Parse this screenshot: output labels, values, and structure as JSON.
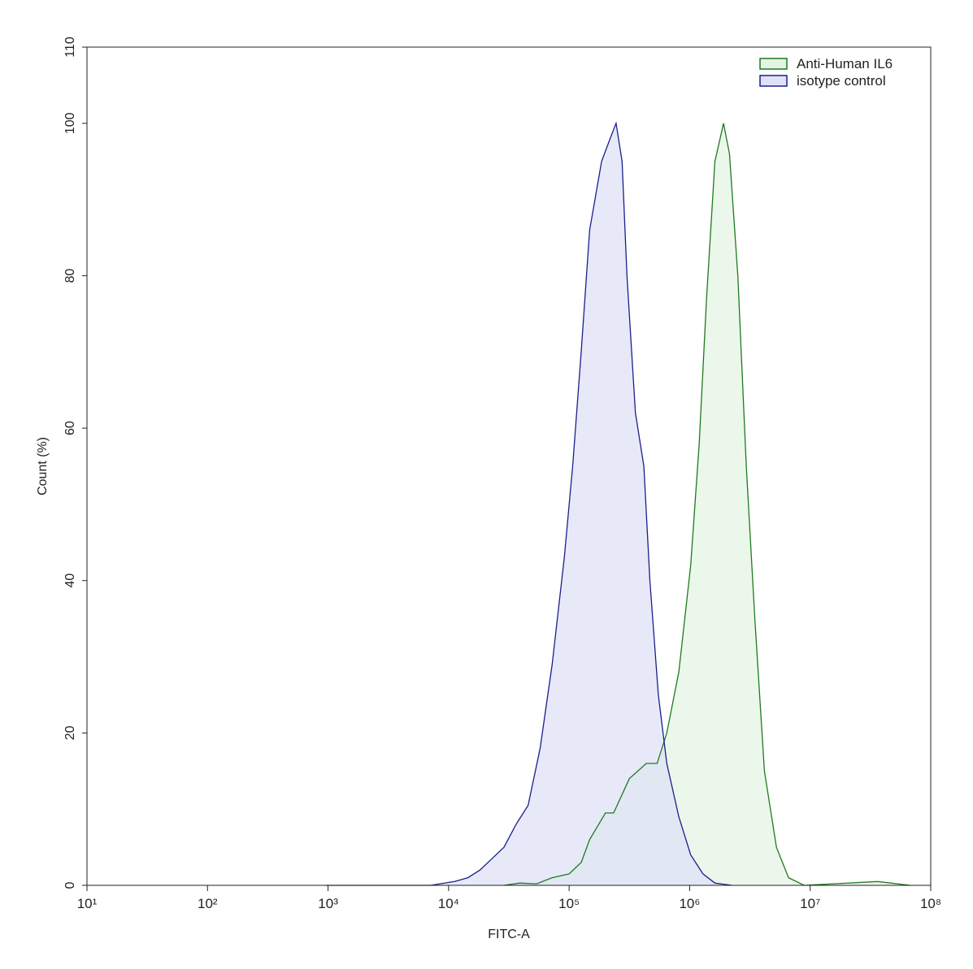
{
  "chart_data": {
    "type": "area",
    "x_label": "FITC-A",
    "y_label": "Count  (%)",
    "xscale": "log",
    "xlim": [
      10,
      100000000
    ],
    "xticks": [
      {
        "value": 10,
        "label": "10¹"
      },
      {
        "value": 100,
        "label": "10²"
      },
      {
        "value": 1000,
        "label": "10³"
      },
      {
        "value": 10000,
        "label": "10⁴"
      },
      {
        "value": 100000,
        "label": "10⁵"
      },
      {
        "value": 1000000,
        "label": "10⁶"
      },
      {
        "value": 10000000,
        "label": "10⁷"
      },
      {
        "value": 100000000,
        "label": "10⁸"
      }
    ],
    "ylim": [
      0,
      110
    ],
    "yticks": [
      0,
      20,
      40,
      60,
      80,
      100,
      110
    ],
    "legend": "upper right",
    "series": [
      {
        "name": "Anti-Human IL6",
        "color": "#1f7a1f",
        "fill": "#e4f4e4",
        "x": [
          28800,
          38900,
          53700,
          72400,
          100000,
          126000,
          148000,
          200000,
          234000,
          316000,
          437000,
          537000,
          646000,
          813000,
          1020000,
          1200000,
          1380000,
          1620000,
          1910000,
          2140000,
          2510000,
          2950000,
          3470000,
          4170000,
          5250000,
          6610000,
          8910000,
          36300000,
          67600000
        ],
        "values": [
          0,
          0.3,
          0.2,
          1,
          1.5,
          3,
          6,
          9.5,
          9.5,
          14,
          16,
          16,
          20,
          28,
          42,
          58,
          77,
          95,
          100,
          96,
          80,
          55,
          35,
          15,
          5,
          1,
          0,
          0.5,
          0
        ]
      },
      {
        "name": "isotype control",
        "color": "#1a1f8c",
        "fill": "#dfe2f7",
        "x": [
          955,
          7080,
          11220,
          14450,
          18200,
          22900,
          28800,
          36300,
          45700,
          57500,
          72400,
          91200,
          107000,
          126000,
          148000,
          186000,
          219000,
          245000,
          275000,
          302000,
          355000,
          417000,
          468000,
          550000,
          646000,
          813000,
          1020000,
          1290000,
          1620000,
          2240000
        ],
        "values": [
          0,
          0,
          0.5,
          1,
          2,
          3.5,
          5,
          8,
          10.5,
          18,
          29,
          43,
          55,
          70,
          86,
          95,
          98,
          100,
          95,
          80,
          62,
          55,
          40,
          25,
          16,
          9,
          4,
          1.5,
          0.3,
          0
        ]
      }
    ]
  }
}
